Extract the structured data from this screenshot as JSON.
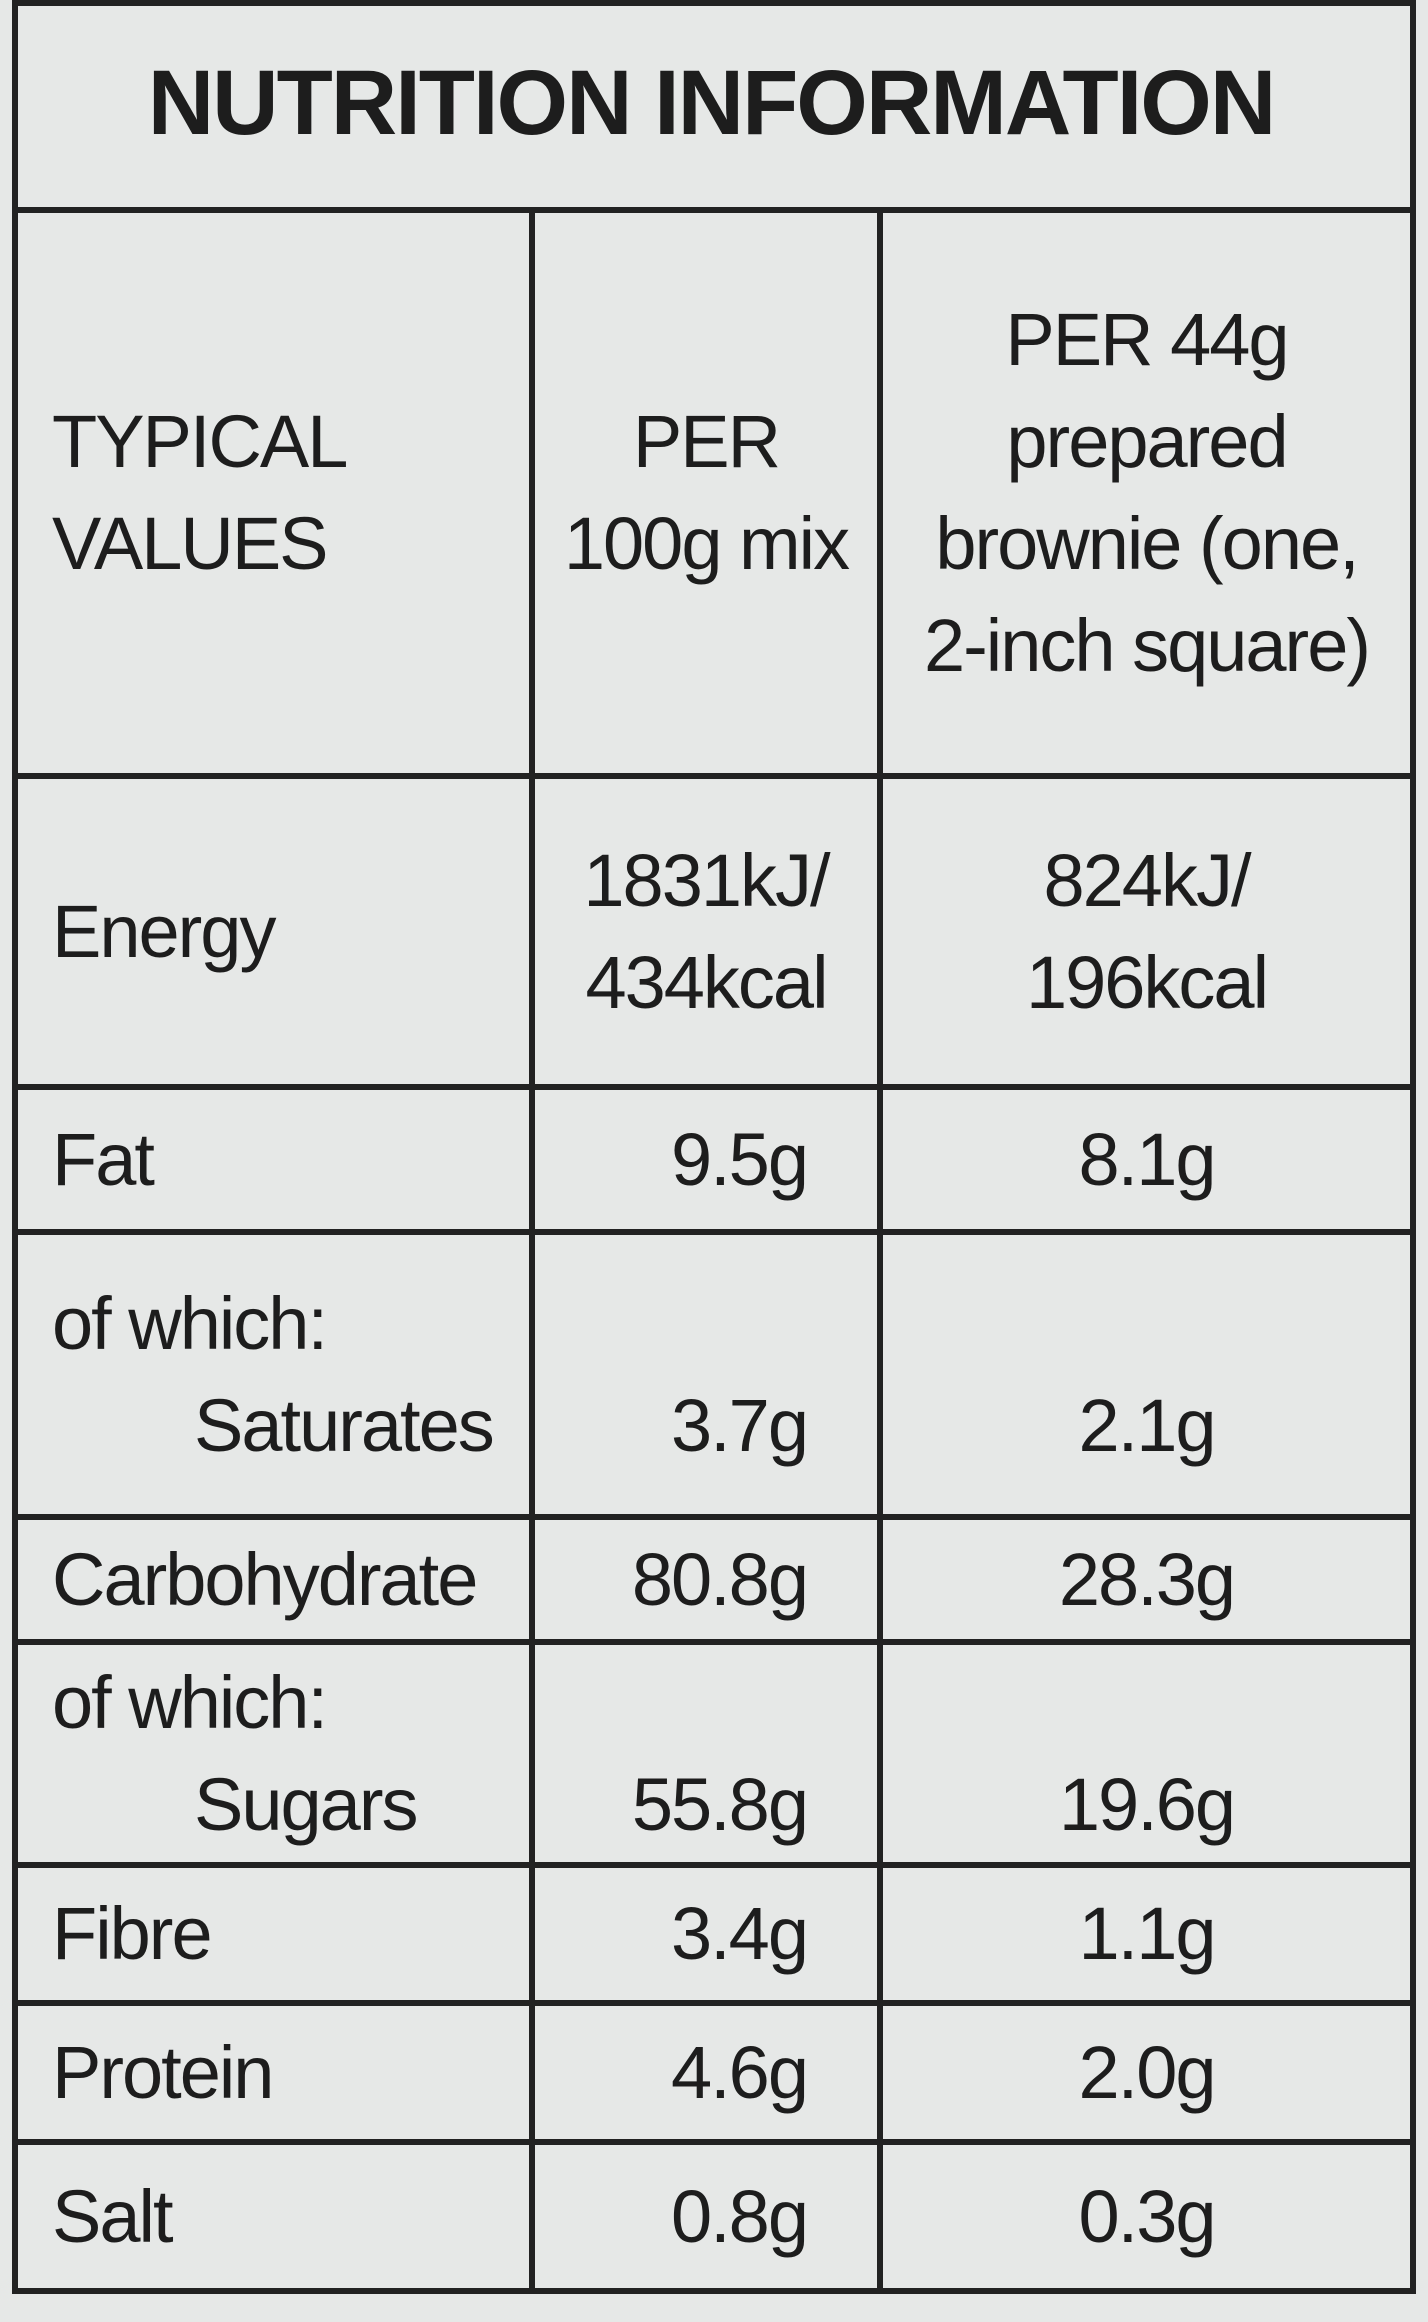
{
  "title": "NUTRITION INFORMATION",
  "header": [
    [
      "TYPICAL",
      "VALUES"
    ],
    [
      "PER",
      "100g mix"
    ],
    [
      "PER 44g",
      "prepared",
      "brownie (one,",
      "2-inch square)"
    ]
  ],
  "rows": [
    {
      "label": [
        "Energy"
      ],
      "per_100g": [
        "1831kJ/",
        "434kcal"
      ],
      "per_serving": [
        "824kJ/",
        "196kcal"
      ]
    },
    {
      "label": [
        "Fat"
      ],
      "per_100g": [
        "9.5g"
      ],
      "per_serving": [
        "8.1g"
      ]
    },
    {
      "label": [
        "of which:",
        "Saturates"
      ],
      "per_100g": [
        "3.7g"
      ],
      "per_serving": [
        "2.1g"
      ]
    },
    {
      "label": [
        "Carbohydrate"
      ],
      "per_100g": [
        "80.8g"
      ],
      "per_serving": [
        "28.3g"
      ]
    },
    {
      "label": [
        "of which:",
        "Sugars"
      ],
      "per_100g": [
        "55.8g"
      ],
      "per_serving": [
        "19.6g"
      ]
    },
    {
      "label": [
        "Fibre"
      ],
      "per_100g": [
        "3.4g"
      ],
      "per_serving": [
        "1.1g"
      ]
    },
    {
      "label": [
        "Protein"
      ],
      "per_100g": [
        "4.6g"
      ],
      "per_serving": [
        "2.0g"
      ]
    },
    {
      "label": [
        "Salt"
      ],
      "per_100g": [
        "0.8g"
      ],
      "per_serving": [
        "0.3g"
      ]
    }
  ]
}
